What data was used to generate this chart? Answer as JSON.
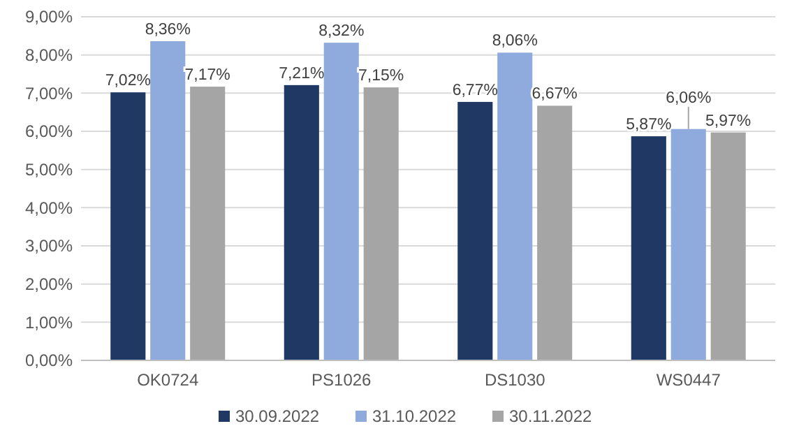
{
  "chart_data": {
    "type": "bar",
    "categories": [
      "OK0724",
      "PS1026",
      "DS1030",
      "WS0447"
    ],
    "series": [
      {
        "name": "30.09.2022",
        "color": "#203864",
        "values": [
          7.02,
          7.21,
          6.77,
          5.87
        ],
        "value_labels": [
          "7,02%",
          "7,21%",
          "6,77%",
          "5,87%"
        ]
      },
      {
        "name": "31.10.2022",
        "color": "#8faadc",
        "values": [
          8.36,
          8.32,
          8.06,
          6.06
        ],
        "value_labels": [
          "8,36%",
          "8,32%",
          "8,06%",
          "6,06%"
        ]
      },
      {
        "name": "30.11.2022",
        "color": "#a5a5a5",
        "values": [
          7.17,
          7.15,
          6.67,
          5.97
        ],
        "value_labels": [
          "7,17%",
          "7,15%",
          "6,67%",
          "5,97%"
        ]
      }
    ],
    "ylim": [
      0,
      9
    ],
    "yticks": [
      {
        "value": 0,
        "label": "0,00%"
      },
      {
        "value": 1,
        "label": "1,00%"
      },
      {
        "value": 2,
        "label": "2,00%"
      },
      {
        "value": 3,
        "label": "3,00%"
      },
      {
        "value": 4,
        "label": "4,00%"
      },
      {
        "value": 5,
        "label": "5,00%"
      },
      {
        "value": 6,
        "label": "6,00%"
      },
      {
        "value": 7,
        "label": "7,00%"
      },
      {
        "value": 8,
        "label": "8,00%"
      },
      {
        "value": 9,
        "label": "9,00%"
      }
    ],
    "grid": "y",
    "legend": "bottom"
  }
}
